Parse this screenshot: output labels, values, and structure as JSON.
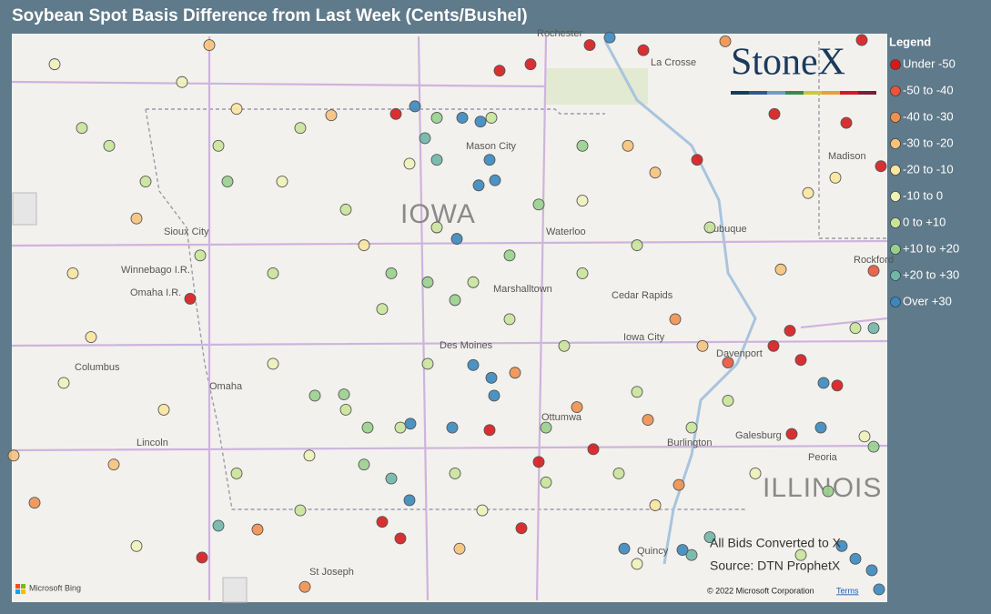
{
  "title": "Soybean Spot Basis Difference from Last Week (Cents/Bushel)",
  "map": {
    "lon_range": [
      -98.2,
      -88.58
    ],
    "lat_range": [
      39.58,
      44.04
    ]
  },
  "logo": "StoneX",
  "legend": {
    "title": "Legend",
    "items": [
      {
        "label": "Under -50",
        "color": "#d7191c"
      },
      {
        "label": "-50 to -40",
        "color": "#e8553a"
      },
      {
        "label": "-40 to -30",
        "color": "#f0904e"
      },
      {
        "label": "-30 to -20",
        "color": "#f6c27a"
      },
      {
        "label": "-20 to -10",
        "color": "#fbe6a0"
      },
      {
        "label": "-10 to 0",
        "color": "#eef2b8"
      },
      {
        "label": "0 to +10",
        "color": "#c9e49a"
      },
      {
        "label": "+10 to +20",
        "color": "#98d08c"
      },
      {
        "label": "+20 to +30",
        "color": "#6fb6a6"
      },
      {
        "label": "Over +30",
        "color": "#3a87bd"
      }
    ]
  },
  "places": [
    "Sioux City",
    "Winnebago I.R.",
    "Omaha I.R.",
    "Columbus",
    "Omaha",
    "Lincoln",
    "St Joseph",
    "Mason City",
    "Waterloo",
    "Marshalltown",
    "Cedar Rapids",
    "Iowa City",
    "Des Moines",
    "Ottumwa",
    "Burlington",
    "Dubuque",
    "Davenport",
    "Galesburg",
    "Peoria",
    "Rockford",
    "Madison",
    "La Crosse",
    "Rochester",
    "Quincy",
    "IOWA",
    "ILLINOIS"
  ],
  "notes": [
    "All Bids Converted to X",
    "Source: DTN ProphetX"
  ],
  "attribution": {
    "bing": "Microsoft Bing",
    "copyright": "© 2022 Microsoft Corporation",
    "terms": "Terms"
  },
  "points": [
    [
      -91.85,
      43.95,
      0
    ],
    [
      -92.84,
      43.75,
      0
    ],
    [
      -92.5,
      43.8,
      0
    ],
    [
      -91.26,
      43.91,
      0
    ],
    [
      -89.82,
      43.41,
      0
    ],
    [
      -90.67,
      43.05,
      0
    ],
    [
      -88.86,
      43.99,
      0
    ],
    [
      -89.03,
      43.34,
      0
    ],
    [
      -88.65,
      43.0,
      0
    ],
    [
      -96.24,
      41.96,
      0
    ],
    [
      -89.65,
      41.71,
      0
    ],
    [
      -89.83,
      41.59,
      0
    ],
    [
      -89.53,
      41.48,
      0
    ],
    [
      -89.13,
      41.28,
      0
    ],
    [
      -92.95,
      40.93,
      0
    ],
    [
      -92.41,
      40.68,
      0
    ],
    [
      -91.81,
      40.78,
      0
    ],
    [
      -94.13,
      40.21,
      0
    ],
    [
      -93.93,
      40.08,
      0
    ],
    [
      -96.11,
      39.93,
      0
    ],
    [
      -92.6,
      40.16,
      0
    ],
    [
      -93.98,
      43.41,
      0
    ],
    [
      -89.63,
      40.9,
      0
    ],
    [
      -88.73,
      42.18,
      1
    ],
    [
      -90.33,
      41.46,
      1
    ],
    [
      -97.95,
      40.36,
      2
    ],
    [
      -95.5,
      40.15,
      2
    ],
    [
      -94.98,
      39.7,
      2
    ],
    [
      -91.99,
      41.11,
      2
    ],
    [
      -91.21,
      41.01,
      2
    ],
    [
      -90.87,
      40.5,
      2
    ],
    [
      -92.67,
      41.38,
      2
    ],
    [
      -90.91,
      41.8,
      2
    ],
    [
      -90.36,
      43.98,
      2
    ],
    [
      -94.69,
      43.4,
      3
    ],
    [
      -96.83,
      42.59,
      3
    ],
    [
      -91.43,
      43.16,
      3
    ],
    [
      -91.13,
      42.95,
      3
    ],
    [
      -89.75,
      42.19,
      3
    ],
    [
      -90.61,
      41.59,
      3
    ],
    [
      -98.18,
      40.73,
      3
    ],
    [
      -97.08,
      40.66,
      3
    ],
    [
      -93.28,
      40.0,
      3
    ],
    [
      -96.03,
      43.95,
      3
    ],
    [
      -89.15,
      42.91,
      4
    ],
    [
      -89.45,
      42.79,
      4
    ],
    [
      -91.13,
      40.34,
      4
    ],
    [
      -94.33,
      42.38,
      4
    ],
    [
      -95.73,
      43.45,
      4
    ],
    [
      -97.53,
      42.16,
      4
    ],
    [
      -97.33,
      41.66,
      4
    ],
    [
      -96.53,
      41.09,
      4
    ],
    [
      -97.73,
      43.8,
      5
    ],
    [
      -96.33,
      43.66,
      5
    ],
    [
      -95.23,
      42.88,
      5
    ],
    [
      -91.93,
      42.73,
      5
    ],
    [
      -95.33,
      41.45,
      5
    ],
    [
      -96.83,
      40.02,
      5
    ],
    [
      -93.03,
      40.3,
      5
    ],
    [
      -91.33,
      39.88,
      5
    ],
    [
      -90.03,
      40.59,
      5
    ],
    [
      -88.83,
      40.88,
      5
    ],
    [
      -97.63,
      41.3,
      5
    ],
    [
      -94.93,
      40.73,
      5
    ],
    [
      -93.83,
      43.02,
      5
    ],
    [
      -97.13,
      43.16,
      6
    ],
    [
      -95.93,
      43.16,
      6
    ],
    [
      -95.03,
      43.3,
      6
    ],
    [
      -94.53,
      42.66,
      6
    ],
    [
      -93.53,
      42.52,
      6
    ],
    [
      -93.13,
      42.09,
      6
    ],
    [
      -92.73,
      41.8,
      6
    ],
    [
      -93.63,
      41.45,
      6
    ],
    [
      -94.53,
      41.09,
      6
    ],
    [
      -95.73,
      40.59,
      6
    ],
    [
      -96.13,
      42.3,
      6
    ],
    [
      -95.33,
      42.16,
      6
    ],
    [
      -94.13,
      41.88,
      6
    ],
    [
      -91.93,
      42.16,
      6
    ],
    [
      -91.33,
      42.38,
      6
    ],
    [
      -92.13,
      41.59,
      6
    ],
    [
      -91.33,
      41.23,
      6
    ],
    [
      -90.73,
      40.95,
      6
    ],
    [
      -93.33,
      40.59,
      6
    ],
    [
      -92.33,
      40.52,
      6
    ],
    [
      -91.53,
      40.59,
      6
    ],
    [
      -96.73,
      42.88,
      6
    ],
    [
      -97.43,
      43.3,
      6
    ],
    [
      -95.03,
      40.3,
      6
    ],
    [
      -93.93,
      40.95,
      6
    ],
    [
      -90.53,
      42.52,
      6
    ],
    [
      -88.93,
      41.73,
      6
    ],
    [
      -89.53,
      39.95,
      6
    ],
    [
      -90.33,
      41.16,
      6
    ],
    [
      -92.93,
      43.38,
      6
    ],
    [
      -94.87,
      41.2,
      7
    ],
    [
      -94.29,
      40.95,
      7
    ],
    [
      -94.55,
      41.21,
      7
    ],
    [
      -92.41,
      42.7,
      7
    ],
    [
      -93.63,
      42.09,
      7
    ],
    [
      -93.33,
      41.95,
      7
    ],
    [
      -94.03,
      42.16,
      7
    ],
    [
      -91.93,
      43.16,
      7
    ],
    [
      -92.73,
      42.3,
      7
    ],
    [
      -93.53,
      43.38,
      7
    ],
    [
      -92.33,
      40.95,
      7
    ],
    [
      -89.23,
      40.45,
      7
    ],
    [
      -88.73,
      40.8,
      7
    ],
    [
      -94.33,
      40.66,
      7
    ],
    [
      -95.83,
      42.88,
      7
    ],
    [
      -93.66,
      43.22,
      8
    ],
    [
      -93.53,
      43.05,
      8
    ],
    [
      -95.93,
      40.18,
      8
    ],
    [
      -94.03,
      40.55,
      8
    ],
    [
      -90.73,
      39.95,
      8
    ],
    [
      -90.53,
      40.09,
      8
    ],
    [
      -88.73,
      41.73,
      8
    ],
    [
      -93.77,
      43.47,
      9
    ],
    [
      -93.25,
      43.38,
      9
    ],
    [
      -93.05,
      43.35,
      9
    ],
    [
      -92.95,
      43.05,
      9
    ],
    [
      -92.89,
      42.89,
      9
    ],
    [
      -93.07,
      42.85,
      9
    ],
    [
      -93.13,
      41.44,
      9
    ],
    [
      -92.93,
      41.34,
      9
    ],
    [
      -92.9,
      41.2,
      9
    ],
    [
      -93.82,
      40.98,
      9
    ],
    [
      -93.36,
      40.95,
      9
    ],
    [
      -93.83,
      40.38,
      9
    ],
    [
      -93.31,
      42.43,
      9
    ],
    [
      -91.63,
      44.01,
      9
    ],
    [
      -91.47,
      40.0,
      9
    ],
    [
      -90.83,
      39.99,
      9
    ],
    [
      -89.08,
      40.02,
      9
    ],
    [
      -88.93,
      39.92,
      9
    ],
    [
      -89.28,
      41.3,
      9
    ],
    [
      -89.31,
      40.95,
      9
    ],
    [
      -88.75,
      39.83,
      9
    ],
    [
      -88.67,
      39.68,
      9
    ]
  ]
}
